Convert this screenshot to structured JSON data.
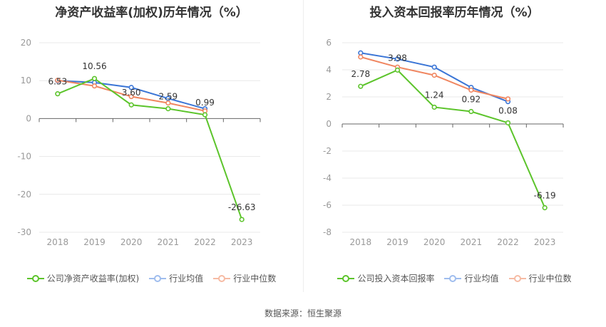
{
  "charts": [
    {
      "title": "净资产收益率(加权)历年情况（%）",
      "legend": [
        "公司净资产收益率(加权)",
        "行业均值",
        "行业中位数"
      ]
    },
    {
      "title": "投入资本回报率历年情况（%）",
      "legend": [
        "公司投入资本回报率",
        "行业均值",
        "行业中位数"
      ]
    }
  ],
  "colors": {
    "company": "#5cc42b",
    "industry_avg": "#3a75d6",
    "industry_median": "#f08660",
    "grid": "#e8e8e8",
    "axis": "#666666",
    "tick_text": "#999999"
  },
  "source": "数据来源：恒生聚源",
  "chart_data": [
    {
      "type": "line",
      "title": "净资产收益率(加权)历年情况（%）",
      "categories": [
        "2018",
        "2019",
        "2020",
        "2021",
        "2022",
        "2023"
      ],
      "ylim": [
        -30,
        20
      ],
      "yticks": [
        20,
        10,
        0,
        -10,
        -20,
        -30
      ],
      "grid": true,
      "legend_position": "bottom",
      "series": [
        {
          "name": "公司净资产收益率(加权)",
          "values": [
            6.53,
            10.56,
            3.6,
            2.59,
            0.99,
            -26.63
          ],
          "labels": [
            "6.53",
            "10.56",
            "3.60",
            "2.59",
            "0.99",
            "-26.63"
          ]
        },
        {
          "name": "行业均值",
          "values": [
            10.0,
            9.5,
            8.2,
            5.3,
            2.6,
            null
          ]
        },
        {
          "name": "行业中位数",
          "values": [
            10.1,
            8.6,
            5.8,
            4.1,
            2.0,
            null
          ]
        }
      ]
    },
    {
      "type": "line",
      "title": "投入资本回报率历年情况（%）",
      "categories": [
        "2018",
        "2019",
        "2020",
        "2021",
        "2022",
        "2023"
      ],
      "ylim": [
        -8,
        6
      ],
      "yticks": [
        6,
        4,
        2,
        0,
        -2,
        -4,
        -6,
        -8
      ],
      "grid": true,
      "legend_position": "bottom",
      "series": [
        {
          "name": "公司投入资本回报率",
          "values": [
            2.78,
            3.98,
            1.24,
            0.92,
            0.08,
            -6.19
          ],
          "labels": [
            "2.78",
            "3.98",
            "1.24",
            "0.92",
            "0.08",
            "-6.19"
          ]
        },
        {
          "name": "行业均值",
          "values": [
            5.25,
            4.8,
            4.2,
            2.7,
            1.65,
            null
          ]
        },
        {
          "name": "行业中位数",
          "values": [
            4.95,
            4.2,
            3.6,
            2.5,
            1.85,
            null
          ]
        }
      ]
    }
  ]
}
